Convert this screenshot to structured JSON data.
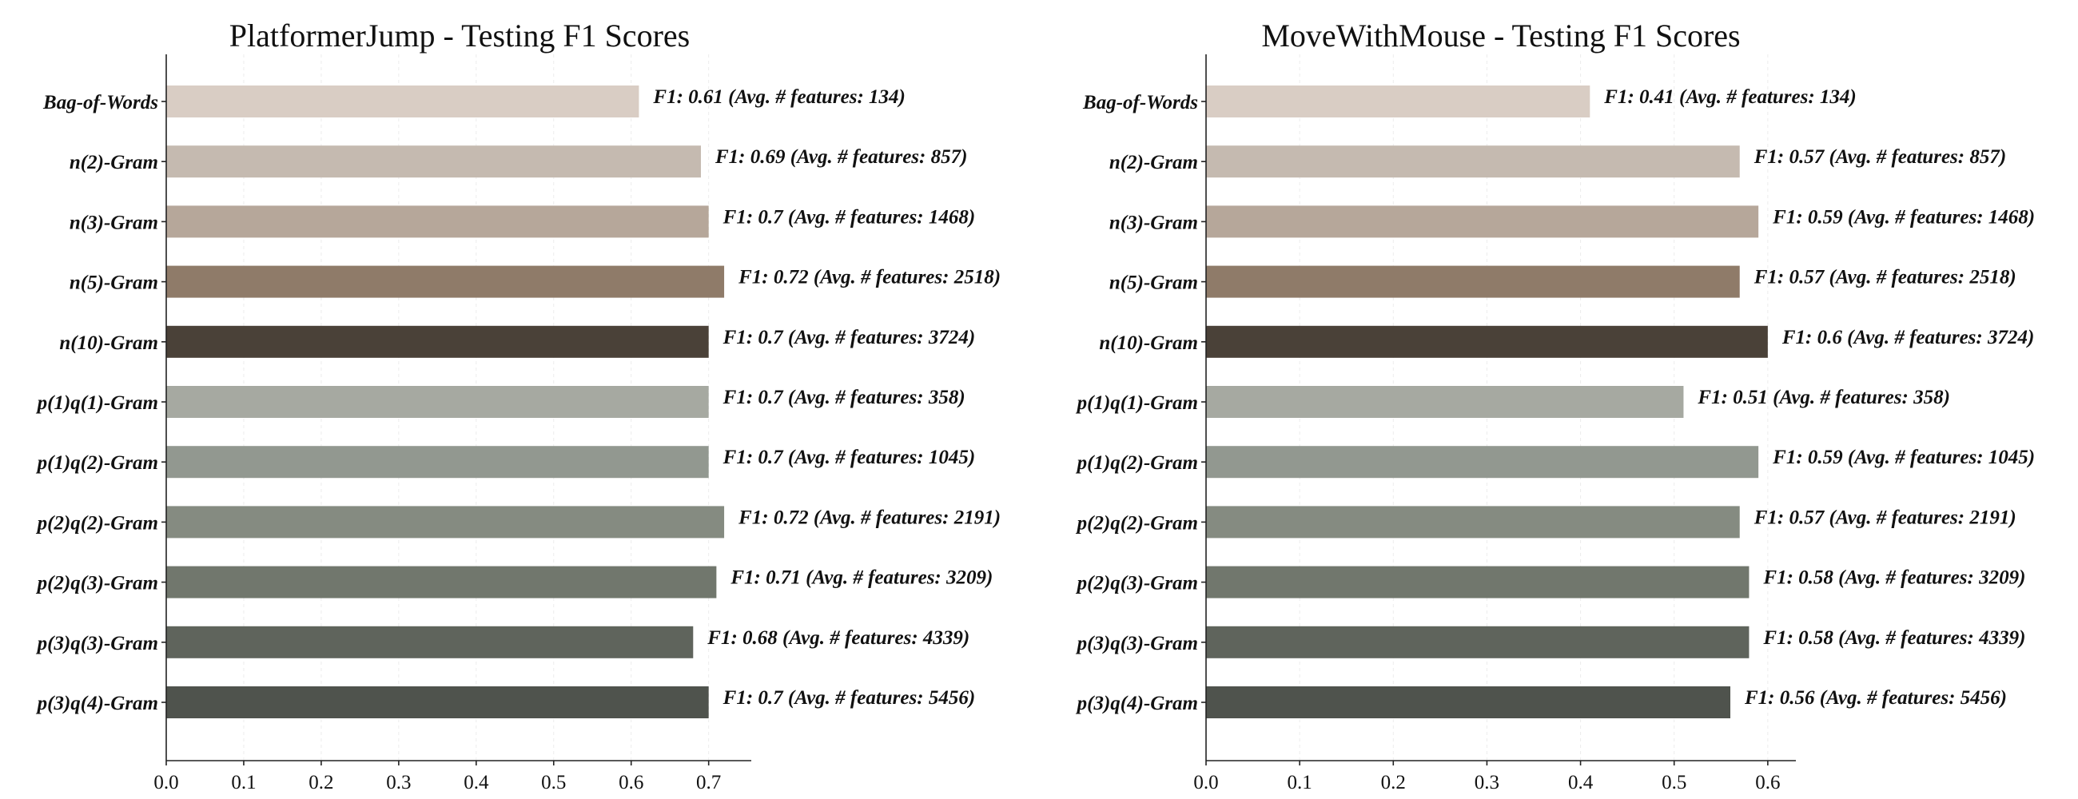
{
  "chart_data": [
    {
      "type": "bar",
      "orientation": "horizontal",
      "title": "PlatformerJump - Testing F1 Scores",
      "xlabel": "",
      "ylabel": "",
      "xlim": [
        0,
        0.755
      ],
      "xticks": [
        "0.0",
        "0.1",
        "0.2",
        "0.3",
        "0.4",
        "0.5",
        "0.6",
        "0.7"
      ],
      "grid": true,
      "categories": [
        "Bag-of-Words",
        "n(2)-Gram",
        "n(3)-Gram",
        "n(5)-Gram",
        "n(10)-Gram",
        "p(1)q(1)-Gram",
        "p(1)q(2)-Gram",
        "p(2)q(2)-Gram",
        "p(2)q(3)-Gram",
        "p(3)q(3)-Gram",
        "p(3)q(4)-Gram"
      ],
      "values": [
        0.61,
        0.69,
        0.7,
        0.72,
        0.7,
        0.7,
        0.7,
        0.72,
        0.71,
        0.68,
        0.7
      ],
      "bar_labels": [
        "F1: 0.61 (Avg. # features: 134)",
        "F1: 0.69 (Avg. # features: 857)",
        "F1: 0.7 (Avg. # features: 1468)",
        "F1: 0.72 (Avg. # features: 2518)",
        "F1: 0.7 (Avg. # features: 3724)",
        "F1: 0.7 (Avg. # features: 358)",
        "F1: 0.7 (Avg. # features: 1045)",
        "F1: 0.72 (Avg. # features: 2191)",
        "F1: 0.71 (Avg. # features: 3209)",
        "F1: 0.68 (Avg. # features: 4339)",
        "F1: 0.7 (Avg. # features: 5456)"
      ],
      "colors": [
        "#d9cdc4",
        "#c5bab0",
        "#b6a79a",
        "#8f7b69",
        "#4a4138",
        "#a6a9a1",
        "#929890",
        "#858b81",
        "#71776d",
        "#5f645c",
        "#4f534d"
      ]
    },
    {
      "type": "bar",
      "orientation": "horizontal",
      "title": "MoveWithMouse - Testing F1 Scores",
      "xlabel": "",
      "ylabel": "",
      "xlim": [
        0,
        0.63
      ],
      "xticks": [
        "0.0",
        "0.1",
        "0.2",
        "0.3",
        "0.4",
        "0.5",
        "0.6"
      ],
      "grid": true,
      "categories": [
        "Bag-of-Words",
        "n(2)-Gram",
        "n(3)-Gram",
        "n(5)-Gram",
        "n(10)-Gram",
        "p(1)q(1)-Gram",
        "p(1)q(2)-Gram",
        "p(2)q(2)-Gram",
        "p(2)q(3)-Gram",
        "p(3)q(3)-Gram",
        "p(3)q(4)-Gram"
      ],
      "values": [
        0.41,
        0.57,
        0.59,
        0.57,
        0.6,
        0.51,
        0.59,
        0.57,
        0.58,
        0.58,
        0.56
      ],
      "bar_labels": [
        "F1: 0.41 (Avg. # features: 134)",
        "F1: 0.57 (Avg. # features: 857)",
        "F1: 0.59 (Avg. # features: 1468)",
        "F1: 0.57 (Avg. # features: 2518)",
        "F1: 0.6 (Avg. # features: 3724)",
        "F1: 0.51 (Avg. # features: 358)",
        "F1: 0.59 (Avg. # features: 1045)",
        "F1: 0.57 (Avg. # features: 2191)",
        "F1: 0.58 (Avg. # features: 3209)",
        "F1: 0.58 (Avg. # features: 4339)",
        "F1: 0.56 (Avg. # features: 5456)"
      ],
      "colors": [
        "#d9cdc4",
        "#c5bab0",
        "#b6a79a",
        "#8f7b69",
        "#4a4138",
        "#a6a9a1",
        "#929890",
        "#858b81",
        "#71776d",
        "#5f645c",
        "#4f534d"
      ]
    }
  ]
}
